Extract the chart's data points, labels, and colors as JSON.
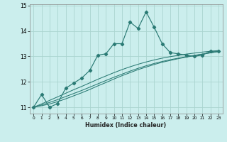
{
  "title": "",
  "xlabel": "Humidex (Indice chaleur)",
  "background_color": "#cbeeed",
  "grid_color": "#aad4d0",
  "line_color": "#2a7a74",
  "x_hours": [
    0,
    1,
    2,
    3,
    4,
    5,
    6,
    7,
    8,
    9,
    10,
    11,
    12,
    13,
    14,
    15,
    16,
    17,
    18,
    19,
    20,
    21,
    22,
    23
  ],
  "main_line": [
    11.0,
    11.5,
    11.0,
    11.15,
    11.75,
    11.95,
    12.15,
    12.45,
    13.05,
    13.1,
    13.5,
    13.5,
    14.35,
    14.1,
    14.75,
    14.15,
    13.5,
    13.15,
    13.1,
    13.05,
    13.0,
    13.05,
    13.2,
    13.2
  ],
  "smooth_line1": [
    11.0,
    11.13,
    11.27,
    11.41,
    11.55,
    11.69,
    11.82,
    11.96,
    12.1,
    12.23,
    12.36,
    12.48,
    12.59,
    12.69,
    12.78,
    12.86,
    12.93,
    12.99,
    13.04,
    13.09,
    13.13,
    13.17,
    13.2,
    13.23
  ],
  "smooth_line2": [
    11.0,
    11.09,
    11.19,
    11.3,
    11.42,
    11.54,
    11.66,
    11.79,
    11.92,
    12.05,
    12.18,
    12.3,
    12.42,
    12.53,
    12.63,
    12.72,
    12.8,
    12.87,
    12.93,
    12.99,
    13.04,
    13.09,
    13.14,
    13.19
  ],
  "smooth_line3": [
    11.0,
    11.06,
    11.13,
    11.22,
    11.33,
    11.45,
    11.57,
    11.7,
    11.84,
    11.97,
    12.11,
    12.24,
    12.36,
    12.48,
    12.58,
    12.68,
    12.77,
    12.84,
    12.91,
    12.97,
    13.03,
    13.09,
    13.14,
    13.19
  ],
  "ylim": [
    10.75,
    15.05
  ],
  "yticks": [
    11,
    12,
    13,
    14,
    15
  ],
  "xlim": [
    -0.5,
    23.5
  ],
  "xticks": [
    0,
    1,
    2,
    3,
    4,
    5,
    6,
    7,
    8,
    9,
    10,
    11,
    12,
    13,
    14,
    15,
    16,
    17,
    18,
    19,
    20,
    21,
    22,
    23
  ]
}
